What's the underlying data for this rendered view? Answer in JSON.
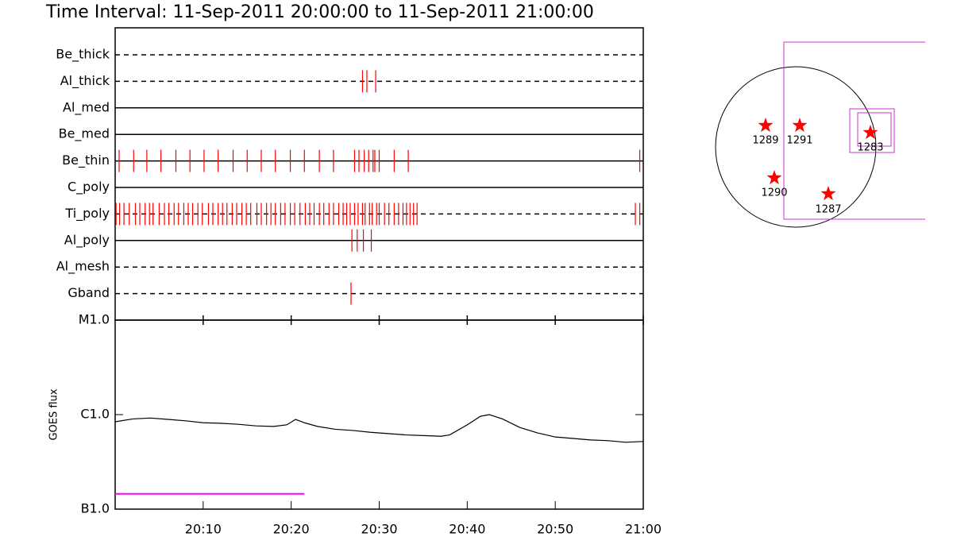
{
  "chart_data": [
    {
      "type": "timeline",
      "title": "Time Interval: 11-Sep-2011 20:00:00 to 11-Sep-2011 21:00:00",
      "xlim": [
        0,
        60
      ],
      "color": "#ff0000",
      "rows": [
        {
          "name": "Be_thick",
          "line_style": "dashed",
          "times": []
        },
        {
          "name": "Al_thick",
          "line_style": "dashed",
          "times": [
            28.1,
            28.6,
            29.6
          ]
        },
        {
          "name": "Al_med",
          "line_style": "solid",
          "times": []
        },
        {
          "name": "Be_med",
          "line_style": "solid",
          "times": []
        },
        {
          "name": "Be_thin",
          "line_style": "solid",
          "times": [
            0.45,
            2.1,
            3.6,
            5.2,
            6.9,
            8.5,
            10.1,
            11.7,
            13.4,
            15.0,
            16.6,
            18.2,
            19.9,
            21.5,
            23.2,
            24.8,
            27.2,
            27.7,
            28.3,
            28.8,
            29.3,
            29.5,
            30.0,
            31.7,
            33.3,
            59.6
          ]
        },
        {
          "name": "C_poly",
          "line_style": "solid",
          "times": []
        },
        {
          "name": "Ti_poly",
          "line_style": "dashed",
          "times": [
            0.1,
            0.5,
            1.0,
            1.6,
            2.3,
            2.8,
            3.4,
            3.9,
            4.3,
            5.0,
            5.6,
            6.1,
            6.7,
            7.2,
            7.8,
            8.3,
            8.8,
            9.4,
            9.9,
            10.6,
            11.1,
            11.7,
            12.2,
            12.7,
            13.3,
            13.8,
            14.4,
            14.9,
            15.4,
            16.1,
            16.6,
            17.2,
            17.7,
            18.2,
            18.8,
            19.3,
            19.9,
            20.4,
            21.0,
            21.6,
            22.1,
            22.6,
            23.2,
            23.7,
            24.3,
            24.8,
            25.4,
            25.9,
            26.3,
            26.7,
            27.2,
            27.6,
            28.1,
            28.4,
            28.9,
            29.2,
            29.7,
            30.0,
            30.6,
            31.1,
            31.7,
            32.2,
            32.7,
            33.1,
            33.5,
            33.9,
            34.3,
            59.1,
            59.6
          ]
        },
        {
          "name": "Al_poly",
          "line_style": "solid",
          "times": [
            26.9,
            27.5,
            28.2,
            29.1
          ]
        },
        {
          "name": "Al_mesh",
          "line_style": "dashed",
          "times": []
        },
        {
          "name": "Gband",
          "line_style": "dashed",
          "times": [
            26.8
          ]
        }
      ]
    },
    {
      "type": "line",
      "ylabel": "GOES flux",
      "log_scale": true,
      "color": "#000000",
      "xlim": [
        0,
        60
      ],
      "xticks": [
        {
          "value": 10,
          "label": "20:10"
        },
        {
          "value": 20,
          "label": "20:20"
        },
        {
          "value": 30,
          "label": "20:30"
        },
        {
          "value": 40,
          "label": "20:40"
        },
        {
          "value": 50,
          "label": "20:50"
        },
        {
          "value": 60,
          "label": "21:00"
        }
      ],
      "ylim": [
        1e-07,
        1e-05
      ],
      "yticks": [
        {
          "value": 1e-07,
          "label": "B1.0"
        },
        {
          "value": 1e-06,
          "label": "C1.0"
        },
        {
          "value": 1e-05,
          "label": "M1.0"
        }
      ],
      "x": [
        0,
        2,
        4,
        6,
        8,
        10,
        12,
        14,
        16,
        18,
        19.5,
        20.5,
        21.5,
        23,
        25,
        27,
        29,
        31,
        33,
        35,
        37,
        38,
        40,
        41.5,
        42.5,
        44,
        46,
        48,
        50,
        52,
        54,
        56,
        58,
        60
      ],
      "values": [
        8.4e-07,
        9e-07,
        9.2e-07,
        8.9e-07,
        8.6e-07,
        8.2e-07,
        8.1e-07,
        7.9e-07,
        7.6e-07,
        7.5e-07,
        7.8e-07,
        8.9e-07,
        8.2e-07,
        7.5e-07,
        7e-07,
        6.8e-07,
        6.5e-07,
        6.3e-07,
        6.1e-07,
        6e-07,
        5.9e-07,
        6.1e-07,
        7.8e-07,
        9.6e-07,
        1e-06,
        9e-07,
        7.3e-07,
        6.4e-07,
        5.8e-07,
        5.6e-07,
        5.4e-07,
        5.3e-07,
        5.1e-07,
        5.2e-07
      ],
      "reference_line": {
        "value": 1.45e-07,
        "x": [
          0,
          21.5
        ],
        "color": "#ff00ff"
      }
    }
  ],
  "sun_map": {
    "regions": [
      {
        "label": "1289"
      },
      {
        "label": "1291"
      },
      {
        "label": "1283"
      },
      {
        "label": "1290"
      },
      {
        "label": "1287"
      }
    ]
  }
}
